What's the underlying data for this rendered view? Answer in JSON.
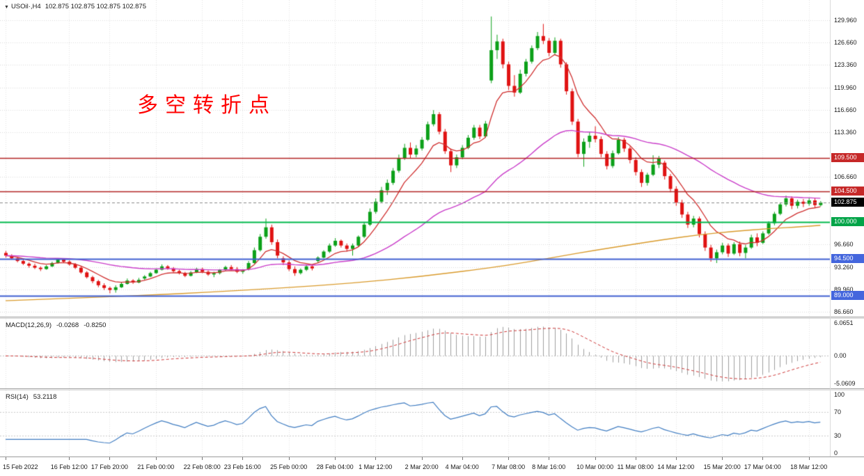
{
  "symbol_bar": {
    "collapse_icon": "▼",
    "symbol": "USOil·,H4",
    "ohlc": "102.875 102.875 102.875 102.875"
  },
  "annotation": {
    "text": "多空转折点",
    "color": "#ff0000"
  },
  "colors": {
    "background": "#ffffff",
    "bull": "#0ca019",
    "bear": "#e01212",
    "grid": "#d9d9d9",
    "vgrid": "#e3e3e3",
    "axis_text": "#1a1a1a",
    "macd_hist": "#9e9e9e",
    "macd_signal": "#cc3333",
    "rsi_line": "#3f7cc1",
    "current_price_line": "#888888",
    "current_price_badge": "#000000"
  },
  "chart_data": {
    "type": "candlestick",
    "symbol": "USOil",
    "timeframe": "H4",
    "ylim": [
      85.94,
      132.95
    ],
    "candles": [
      [
        95.4,
        95.7,
        94.7,
        95.0
      ],
      [
        95.0,
        95.2,
        94.4,
        94.6
      ],
      [
        94.6,
        94.8,
        94.0,
        94.2
      ],
      [
        94.2,
        94.5,
        93.6,
        93.8
      ],
      [
        93.8,
        94.0,
        93.2,
        93.5
      ],
      [
        93.5,
        93.8,
        93.0,
        93.2
      ],
      [
        93.2,
        93.4,
        92.7,
        93.0
      ],
      [
        93.0,
        93.6,
        92.9,
        93.4
      ],
      [
        93.4,
        94.1,
        93.3,
        93.9
      ],
      [
        93.9,
        94.6,
        93.8,
        94.4
      ],
      [
        94.4,
        94.6,
        93.9,
        94.1
      ],
      [
        94.1,
        94.3,
        93.5,
        93.7
      ],
      [
        93.7,
        93.9,
        93.0,
        93.2
      ],
      [
        93.2,
        93.4,
        92.3,
        92.5
      ],
      [
        92.5,
        92.7,
        91.6,
        91.8
      ],
      [
        91.8,
        92.0,
        90.9,
        91.2
      ],
      [
        91.2,
        91.4,
        90.3,
        90.6
      ],
      [
        90.6,
        90.9,
        89.9,
        90.2
      ],
      [
        90.2,
        90.4,
        89.4,
        89.9
      ],
      [
        89.9,
        90.6,
        89.5,
        90.3
      ],
      [
        90.3,
        91.1,
        90.2,
        90.8
      ],
      [
        90.8,
        91.6,
        90.7,
        91.3
      ],
      [
        91.3,
        91.5,
        90.8,
        91.0
      ],
      [
        91.0,
        91.7,
        90.9,
        91.4
      ],
      [
        91.6,
        92.1,
        91.4,
        91.9
      ],
      [
        91.9,
        92.6,
        91.8,
        92.4
      ],
      [
        92.4,
        93.1,
        92.3,
        92.9
      ],
      [
        92.9,
        93.7,
        92.8,
        93.4
      ],
      [
        93.4,
        93.6,
        92.9,
        93.1
      ],
      [
        93.1,
        93.3,
        92.5,
        92.7
      ],
      [
        92.7,
        92.9,
        92.2,
        92.4
      ],
      [
        92.4,
        92.6,
        91.8,
        92.0
      ],
      [
        92.0,
        92.7,
        91.9,
        92.5
      ],
      [
        92.5,
        93.2,
        92.4,
        93.0
      ],
      [
        93.0,
        93.2,
        92.4,
        92.6
      ],
      [
        92.6,
        92.8,
        92.0,
        92.2
      ],
      [
        92.2,
        92.6,
        91.8,
        92.4
      ],
      [
        92.4,
        93.0,
        92.2,
        92.9
      ],
      [
        92.9,
        93.5,
        92.7,
        93.3
      ],
      [
        93.3,
        93.6,
        92.8,
        93.0
      ],
      [
        93.0,
        93.3,
        92.4,
        92.6
      ],
      [
        92.6,
        93.0,
        92.3,
        92.8
      ],
      [
        93.0,
        94.2,
        92.8,
        93.9
      ],
      [
        93.9,
        96.2,
        93.8,
        95.8
      ],
      [
        95.8,
        98.2,
        95.6,
        97.8
      ],
      [
        97.8,
        100.5,
        97.5,
        99.2
      ],
      [
        99.2,
        99.6,
        96.6,
        97.0
      ],
      [
        97.0,
        97.4,
        94.6,
        95.0
      ],
      [
        94.6,
        94.9,
        93.6,
        94.0
      ],
      [
        94.0,
        94.3,
        92.7,
        93.0
      ],
      [
        93.0,
        93.4,
        92.0,
        92.4
      ],
      [
        92.4,
        93.1,
        92.2,
        92.9
      ],
      [
        92.9,
        93.7,
        92.7,
        93.4
      ],
      [
        93.4,
        93.7,
        92.8,
        93.1
      ],
      [
        94.2,
        94.9,
        93.9,
        94.7
      ],
      [
        94.7,
        95.8,
        94.6,
        95.6
      ],
      [
        95.6,
        96.8,
        95.4,
        96.5
      ],
      [
        96.5,
        97.6,
        96.3,
        97.2
      ],
      [
        97.2,
        97.4,
        96.2,
        96.5
      ],
      [
        96.5,
        96.8,
        95.6,
        96.0
      ],
      [
        96.0,
        96.8,
        95.0,
        96.5
      ],
      [
        96.5,
        98.0,
        96.3,
        97.8
      ],
      [
        97.8,
        100.0,
        97.6,
        99.6
      ],
      [
        99.6,
        102.0,
        99.4,
        101.5
      ],
      [
        101.5,
        103.5,
        101.2,
        103.0
      ],
      [
        103.0,
        105.2,
        102.8,
        104.7
      ],
      [
        104.7,
        106.3,
        104.0,
        105.8
      ],
      [
        105.8,
        108.0,
        105.5,
        107.6
      ],
      [
        107.6,
        110.0,
        107.3,
        109.5
      ],
      [
        109.5,
        111.6,
        109.2,
        111.0
      ],
      [
        111.0,
        111.8,
        109.4,
        110.0
      ],
      [
        110.0,
        111.4,
        109.6,
        110.9
      ],
      [
        110.9,
        112.6,
        110.6,
        112.2
      ],
      [
        112.2,
        114.9,
        112.0,
        114.5
      ],
      [
        114.5,
        116.6,
        114.2,
        116.0
      ],
      [
        116.0,
        116.3,
        113.0,
        113.4
      ],
      [
        113.4,
        113.8,
        110.1,
        110.5
      ],
      [
        110.5,
        110.9,
        107.4,
        108.4
      ],
      [
        108.4,
        110.0,
        108.0,
        109.6
      ],
      [
        109.6,
        111.4,
        109.3,
        111.0
      ],
      [
        111.0,
        112.9,
        110.8,
        112.5
      ],
      [
        112.5,
        114.4,
        112.2,
        114.0
      ],
      [
        114.0,
        114.4,
        112.3,
        112.7
      ],
      [
        112.7,
        115.0,
        112.5,
        114.6
      ],
      [
        121.0,
        130.5,
        120.6,
        125.5
      ],
      [
        125.5,
        127.8,
        124.2,
        126.8
      ],
      [
        126.8,
        127.2,
        122.8,
        123.4
      ],
      [
        123.4,
        123.8,
        119.6,
        120.2
      ],
      [
        120.2,
        121.8,
        118.6,
        119.2
      ],
      [
        119.2,
        122.6,
        119.0,
        122.0
      ],
      [
        122.0,
        124.2,
        121.6,
        123.8
      ],
      [
        123.8,
        126.2,
        123.5,
        125.8
      ],
      [
        125.8,
        128.2,
        125.5,
        127.6
      ],
      [
        127.6,
        129.4,
        126.4,
        126.9
      ],
      [
        126.9,
        127.3,
        124.6,
        125.1
      ],
      [
        125.1,
        127.4,
        124.8,
        126.9
      ],
      [
        126.9,
        127.2,
        122.9,
        123.4
      ],
      [
        123.4,
        123.7,
        118.9,
        119.4
      ],
      [
        119.4,
        119.8,
        114.4,
        114.9
      ],
      [
        114.9,
        115.3,
        109.6,
        110.1
      ],
      [
        110.1,
        112.4,
        108.2,
        111.9
      ],
      [
        111.9,
        113.4,
        111.0,
        112.8
      ],
      [
        112.8,
        114.2,
        111.8,
        112.3
      ],
      [
        112.3,
        112.7,
        109.6,
        110.1
      ],
      [
        110.1,
        110.5,
        107.8,
        108.3
      ],
      [
        108.3,
        110.6,
        108.0,
        110.2
      ],
      [
        110.2,
        112.6,
        110.0,
        112.2
      ],
      [
        112.2,
        112.5,
        110.4,
        110.9
      ],
      [
        110.9,
        111.2,
        108.7,
        109.2
      ],
      [
        109.2,
        109.6,
        106.9,
        107.4
      ],
      [
        107.4,
        107.8,
        105.2,
        105.8
      ],
      [
        105.8,
        107.3,
        105.4,
        107.0
      ],
      [
        107.0,
        109.9,
        106.8,
        108.5
      ],
      [
        108.5,
        109.8,
        108.0,
        109.4
      ],
      [
        108.8,
        109.1,
        106.3,
        106.8
      ],
      [
        106.8,
        107.1,
        104.4,
        104.9
      ],
      [
        104.9,
        105.3,
        102.4,
        102.9
      ],
      [
        102.9,
        103.3,
        100.6,
        101.1
      ],
      [
        101.1,
        101.5,
        99.1,
        99.6
      ],
      [
        99.6,
        100.9,
        99.2,
        100.5
      ],
      [
        100.5,
        100.8,
        97.7,
        98.2
      ],
      [
        98.2,
        98.6,
        95.7,
        96.2
      ],
      [
        96.2,
        96.6,
        94.1,
        94.6
      ],
      [
        94.6,
        95.9,
        93.9,
        95.5
      ],
      [
        95.5,
        96.9,
        95.2,
        96.5
      ],
      [
        96.5,
        96.8,
        94.8,
        95.3
      ],
      [
        95.3,
        97.0,
        95.1,
        96.7
      ],
      [
        96.7,
        97.1,
        94.9,
        95.4
      ],
      [
        95.4,
        96.6,
        94.6,
        96.2
      ],
      [
        96.2,
        98.1,
        96.0,
        97.7
      ],
      [
        97.7,
        98.3,
        96.4,
        96.9
      ],
      [
        96.9,
        98.6,
        96.7,
        98.3
      ],
      [
        98.3,
        100.1,
        98.1,
        99.8
      ],
      [
        99.8,
        101.5,
        99.5,
        101.2
      ],
      [
        101.2,
        102.9,
        101.0,
        102.6
      ],
      [
        102.6,
        103.9,
        102.3,
        103.5
      ],
      [
        103.5,
        103.8,
        101.9,
        102.4
      ],
      [
        102.4,
        103.3,
        102.0,
        103.0
      ],
      [
        103.0,
        103.4,
        102.2,
        102.7
      ],
      [
        102.7,
        103.6,
        102.4,
        103.2
      ],
      [
        103.2,
        103.5,
        102.1,
        102.5
      ],
      [
        102.5,
        103.1,
        102.3,
        102.875
      ]
    ],
    "x_ticks": [
      {
        "index": 0,
        "label": "15 Feb 2022"
      },
      {
        "index": 11,
        "label": "16 Feb 12:00"
      },
      {
        "index": 18,
        "label": "17 Feb 20:00"
      },
      {
        "index": 26,
        "label": "21 Feb 00:00"
      },
      {
        "index": 34,
        "label": "22 Feb 08:00"
      },
      {
        "index": 41,
        "label": "23 Feb 16:00"
      },
      {
        "index": 49,
        "label": "25 Feb 00:00"
      },
      {
        "index": 57,
        "label": "28 Feb 04:00"
      },
      {
        "index": 64,
        "label": "1 Mar 12:00"
      },
      {
        "index": 72,
        "label": "2 Mar 20:00"
      },
      {
        "index": 79,
        "label": "4 Mar 04:00"
      },
      {
        "index": 87,
        "label": "7 Mar 08:00"
      },
      {
        "index": 94,
        "label": "8 Mar 16:00"
      },
      {
        "index": 102,
        "label": "10 Mar 00:00"
      },
      {
        "index": 109,
        "label": "11 Mar 08:00"
      },
      {
        "index": 116,
        "label": "14 Mar 12:00"
      },
      {
        "index": 124,
        "label": "15 Mar 20:00"
      },
      {
        "index": 131,
        "label": "17 Mar 04:00"
      },
      {
        "index": 139,
        "label": "18 Mar 12:00"
      }
    ],
    "y_axis_labels": [
      {
        "price": 129.96,
        "label": "129.960"
      },
      {
        "price": 126.66,
        "label": "126.660"
      },
      {
        "price": 123.36,
        "label": "123.360"
      },
      {
        "price": 119.96,
        "label": "119.960"
      },
      {
        "price": 116.66,
        "label": "116.660"
      },
      {
        "price": 113.36,
        "label": "113.360"
      },
      {
        "price": 106.66,
        "label": "106.660"
      },
      {
        "price": 96.66,
        "label": "96.660"
      },
      {
        "price": 93.26,
        "label": "93.260"
      },
      {
        "price": 89.96,
        "label": "89.960"
      },
      {
        "price": 86.66,
        "label": "86.660"
      }
    ],
    "levels": [
      {
        "price": 109.5,
        "label": "109.500",
        "line": "#b22222",
        "width": 1.5,
        "badge": "#c62828"
      },
      {
        "price": 104.5,
        "label": "104.500",
        "line": "#b22222",
        "width": 1.5,
        "badge": "#c62828"
      },
      {
        "price": 100.0,
        "label": "100.000",
        "line": "#00b84c",
        "width": 2,
        "badge": "#00a448"
      },
      {
        "price": 94.5,
        "label": "94.500",
        "line": "#3f5fd0",
        "width": 2,
        "badge": "#4466dd"
      },
      {
        "price": 89.0,
        "label": "89.000",
        "line": "#3f5fd0",
        "width": 2,
        "badge": "#4466dd"
      }
    ],
    "current_price": {
      "price": 102.875,
      "label": "102.875"
    },
    "ma_lines": [
      {
        "name": "ma-fast",
        "type": "ema",
        "period": 8,
        "color": "#cf2e2e",
        "width": 1.3
      },
      {
        "name": "ma-medium",
        "type": "ema",
        "period": 45,
        "color": "#c93cc9",
        "width": 1.4
      },
      {
        "name": "ma-slow",
        "type": "points",
        "color": "#d99a2b",
        "width": 1.4,
        "points": [
          [
            0,
            88.3
          ],
          [
            12,
            88.7
          ],
          [
            24,
            89.1
          ],
          [
            36,
            89.6
          ],
          [
            48,
            90.2
          ],
          [
            60,
            90.9
          ],
          [
            72,
            91.9
          ],
          [
            84,
            93.2
          ],
          [
            90,
            94.0
          ],
          [
            96,
            94.9
          ],
          [
            102,
            95.8
          ],
          [
            108,
            96.6
          ],
          [
            114,
            97.4
          ],
          [
            120,
            98.1
          ],
          [
            126,
            98.6
          ],
          [
            132,
            99.0
          ],
          [
            138,
            99.3
          ],
          [
            141,
            99.5
          ]
        ]
      }
    ],
    "macd": {
      "title": "MACD(12,26,9)",
      "value_main": "-0.0268",
      "value_signal": "-0.8250",
      "fast": 12,
      "slow": 26,
      "signal": 9,
      "ylim": [
        -5.0609,
        6.0651
      ],
      "axis_labels": [
        {
          "value": 6.0651,
          "label": "6.0651"
        },
        {
          "value": 0,
          "label": "0.00"
        },
        {
          "value": -5.0609,
          "label": "-5.0609"
        }
      ]
    },
    "rsi": {
      "title": "RSI(14)",
      "value": "53.2118",
      "period": 14,
      "levels": [
        70,
        30
      ],
      "ylim": [
        0,
        100
      ],
      "axis_labels": [
        {
          "value": 100,
          "label": "100"
        },
        {
          "value": 70,
          "label": "70"
        },
        {
          "value": 30,
          "label": "30"
        },
        {
          "value": 0,
          "label": "0"
        }
      ]
    }
  }
}
